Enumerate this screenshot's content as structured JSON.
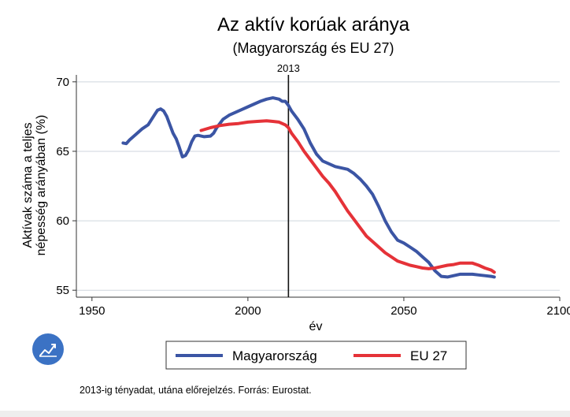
{
  "chart_data": {
    "type": "line",
    "title": "Az aktív korúak aránya",
    "subtitle": "(Magyarország és EU 27)",
    "xlabel": "év",
    "ylabel_lines": [
      "Aktívak száma a teljes",
      "népesség arányában (%)"
    ],
    "xlim": [
      1945,
      2100
    ],
    "ylim": [
      54.5,
      70.5
    ],
    "xticks": [
      1950,
      2000,
      2050,
      2100
    ],
    "yticks": [
      55,
      60,
      65,
      70
    ],
    "grid": "horizontal",
    "reference_line": {
      "x": 2013,
      "label": "2013"
    },
    "legend_position": "bottom",
    "series": [
      {
        "name": "Magyarország",
        "color": "#3b55a4",
        "points": [
          [
            1960,
            65.6
          ],
          [
            1961,
            65.55
          ],
          [
            1962,
            65.8
          ],
          [
            1964,
            66.2
          ],
          [
            1966,
            66.6
          ],
          [
            1968,
            66.9
          ],
          [
            1970,
            67.6
          ],
          [
            1971,
            67.95
          ],
          [
            1972,
            68.05
          ],
          [
            1973,
            67.9
          ],
          [
            1974,
            67.5
          ],
          [
            1975,
            66.9
          ],
          [
            1976,
            66.3
          ],
          [
            1977,
            65.9
          ],
          [
            1978,
            65.3
          ],
          [
            1979,
            64.6
          ],
          [
            1980,
            64.7
          ],
          [
            1981,
            65.1
          ],
          [
            1982,
            65.7
          ],
          [
            1983,
            66.1
          ],
          [
            1984,
            66.15
          ],
          [
            1986,
            66.05
          ],
          [
            1988,
            66.1
          ],
          [
            1989,
            66.3
          ],
          [
            1990,
            66.7
          ],
          [
            1992,
            67.3
          ],
          [
            1994,
            67.6
          ],
          [
            1996,
            67.8
          ],
          [
            1998,
            68.0
          ],
          [
            2000,
            68.2
          ],
          [
            2002,
            68.4
          ],
          [
            2004,
            68.6
          ],
          [
            2006,
            68.75
          ],
          [
            2008,
            68.85
          ],
          [
            2010,
            68.75
          ],
          [
            2011,
            68.6
          ],
          [
            2012,
            68.6
          ],
          [
            2013,
            68.3
          ],
          [
            2014,
            67.9
          ],
          [
            2016,
            67.3
          ],
          [
            2018,
            66.6
          ],
          [
            2020,
            65.6
          ],
          [
            2022,
            64.8
          ],
          [
            2024,
            64.3
          ],
          [
            2026,
            64.1
          ],
          [
            2028,
            63.9
          ],
          [
            2030,
            63.8
          ],
          [
            2032,
            63.7
          ],
          [
            2034,
            63.4
          ],
          [
            2036,
            63.0
          ],
          [
            2038,
            62.5
          ],
          [
            2040,
            61.9
          ],
          [
            2042,
            61.0
          ],
          [
            2044,
            60.0
          ],
          [
            2046,
            59.2
          ],
          [
            2048,
            58.6
          ],
          [
            2050,
            58.4
          ],
          [
            2052,
            58.1
          ],
          [
            2054,
            57.8
          ],
          [
            2056,
            57.4
          ],
          [
            2058,
            57.0
          ],
          [
            2060,
            56.4
          ],
          [
            2062,
            56.0
          ],
          [
            2064,
            55.95
          ],
          [
            2066,
            56.05
          ],
          [
            2068,
            56.15
          ],
          [
            2070,
            56.15
          ],
          [
            2072,
            56.15
          ],
          [
            2074,
            56.1
          ],
          [
            2076,
            56.05
          ],
          [
            2078,
            56.0
          ],
          [
            2079,
            55.95
          ]
        ]
      },
      {
        "name": "EU 27",
        "color": "#e53238",
        "points": [
          [
            1985,
            66.5
          ],
          [
            1988,
            66.7
          ],
          [
            1991,
            66.85
          ],
          [
            1994,
            66.95
          ],
          [
            1997,
            67.0
          ],
          [
            2000,
            67.1
          ],
          [
            2003,
            67.15
          ],
          [
            2006,
            67.2
          ],
          [
            2008,
            67.15
          ],
          [
            2010,
            67.1
          ],
          [
            2012,
            66.9
          ],
          [
            2013,
            66.7
          ],
          [
            2014,
            66.3
          ],
          [
            2016,
            65.7
          ],
          [
            2018,
            65.0
          ],
          [
            2020,
            64.4
          ],
          [
            2022,
            63.8
          ],
          [
            2024,
            63.2
          ],
          [
            2026,
            62.7
          ],
          [
            2028,
            62.1
          ],
          [
            2030,
            61.4
          ],
          [
            2032,
            60.7
          ],
          [
            2034,
            60.1
          ],
          [
            2036,
            59.5
          ],
          [
            2038,
            58.9
          ],
          [
            2040,
            58.5
          ],
          [
            2042,
            58.1
          ],
          [
            2044,
            57.7
          ],
          [
            2046,
            57.4
          ],
          [
            2048,
            57.1
          ],
          [
            2050,
            56.95
          ],
          [
            2052,
            56.8
          ],
          [
            2054,
            56.7
          ],
          [
            2056,
            56.6
          ],
          [
            2058,
            56.55
          ],
          [
            2060,
            56.6
          ],
          [
            2062,
            56.7
          ],
          [
            2064,
            56.8
          ],
          [
            2066,
            56.85
          ],
          [
            2068,
            56.95
          ],
          [
            2070,
            56.95
          ],
          [
            2072,
            56.95
          ],
          [
            2074,
            56.8
          ],
          [
            2076,
            56.6
          ],
          [
            2078,
            56.45
          ],
          [
            2079,
            56.3
          ]
        ]
      }
    ]
  },
  "note": "2013-ig tényadat, utána előrejelzés. Forrás: Eurostat.",
  "icon": {
    "name": "line-chart-icon",
    "color": "#3b72c4"
  }
}
